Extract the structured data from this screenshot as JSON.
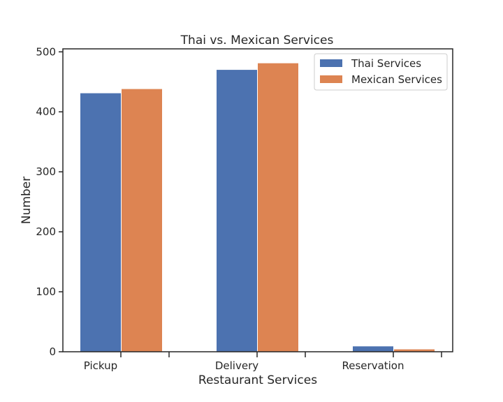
{
  "chart_data": {
    "type": "bar",
    "title": "Thai vs. Mexican Services",
    "xlabel": "Restaurant Services",
    "ylabel": "Number",
    "categories": [
      "Pickup",
      "Delivery",
      "Reservation"
    ],
    "series": [
      {
        "name": "Thai Services",
        "color": "#4c72b0",
        "values": [
          431,
          470,
          9
        ]
      },
      {
        "name": "Mexican Services",
        "color": "#dd8452",
        "values": [
          438,
          481,
          4
        ]
      }
    ],
    "ylim": [
      0,
      505
    ],
    "yticks": [
      0,
      100,
      200,
      300,
      400,
      500
    ],
    "legend": {
      "position": "top-right",
      "items": [
        "Thai Services",
        "Mexican Services"
      ]
    }
  }
}
